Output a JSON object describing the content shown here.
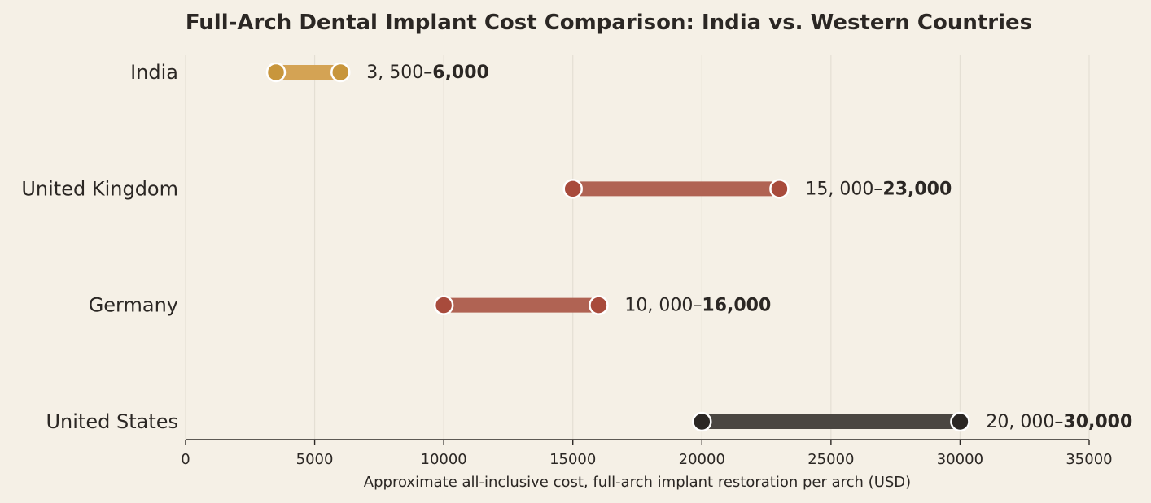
{
  "chart_data": {
    "type": "dumbbell",
    "title": "Full-Arch Dental Implant Cost Comparison: India vs. Western Countries",
    "xlabel": "Approximate all-inclusive cost, full-arch implant restoration per arch (USD)",
    "ylabel": "",
    "xlim": [
      0,
      35000
    ],
    "xticks": [
      0,
      5000,
      10000,
      15000,
      20000,
      25000,
      30000,
      35000
    ],
    "grid": "vertical",
    "legend": "none",
    "series": [
      {
        "category": "India",
        "low": 3500,
        "high": 6000,
        "low_text": "3, 500–",
        "high_text": "6,000",
        "bar_color": "#d4a354",
        "dot_color": "#c8963c"
      },
      {
        "category": "United Kingdom",
        "low": 15000,
        "high": 23000,
        "low_text": "15, 000–",
        "high_text": "23,000",
        "bar_color": "#b06353",
        "dot_color": "#a84b3c"
      },
      {
        "category": "Germany",
        "low": 10000,
        "high": 16000,
        "low_text": "10, 000–",
        "high_text": "16,000",
        "bar_color": "#b06353",
        "dot_color": "#a84b3c"
      },
      {
        "category": "United States",
        "low": 20000,
        "high": 30000,
        "low_text": "20, 000–",
        "high_text": "30,000",
        "bar_color": "#4a4641",
        "dot_color": "#2b2724"
      }
    ]
  },
  "colors": {
    "background": "#f5f0e6",
    "grid": "#e4dfd4",
    "axis": "#2b2724",
    "text": "#2b2724"
  }
}
